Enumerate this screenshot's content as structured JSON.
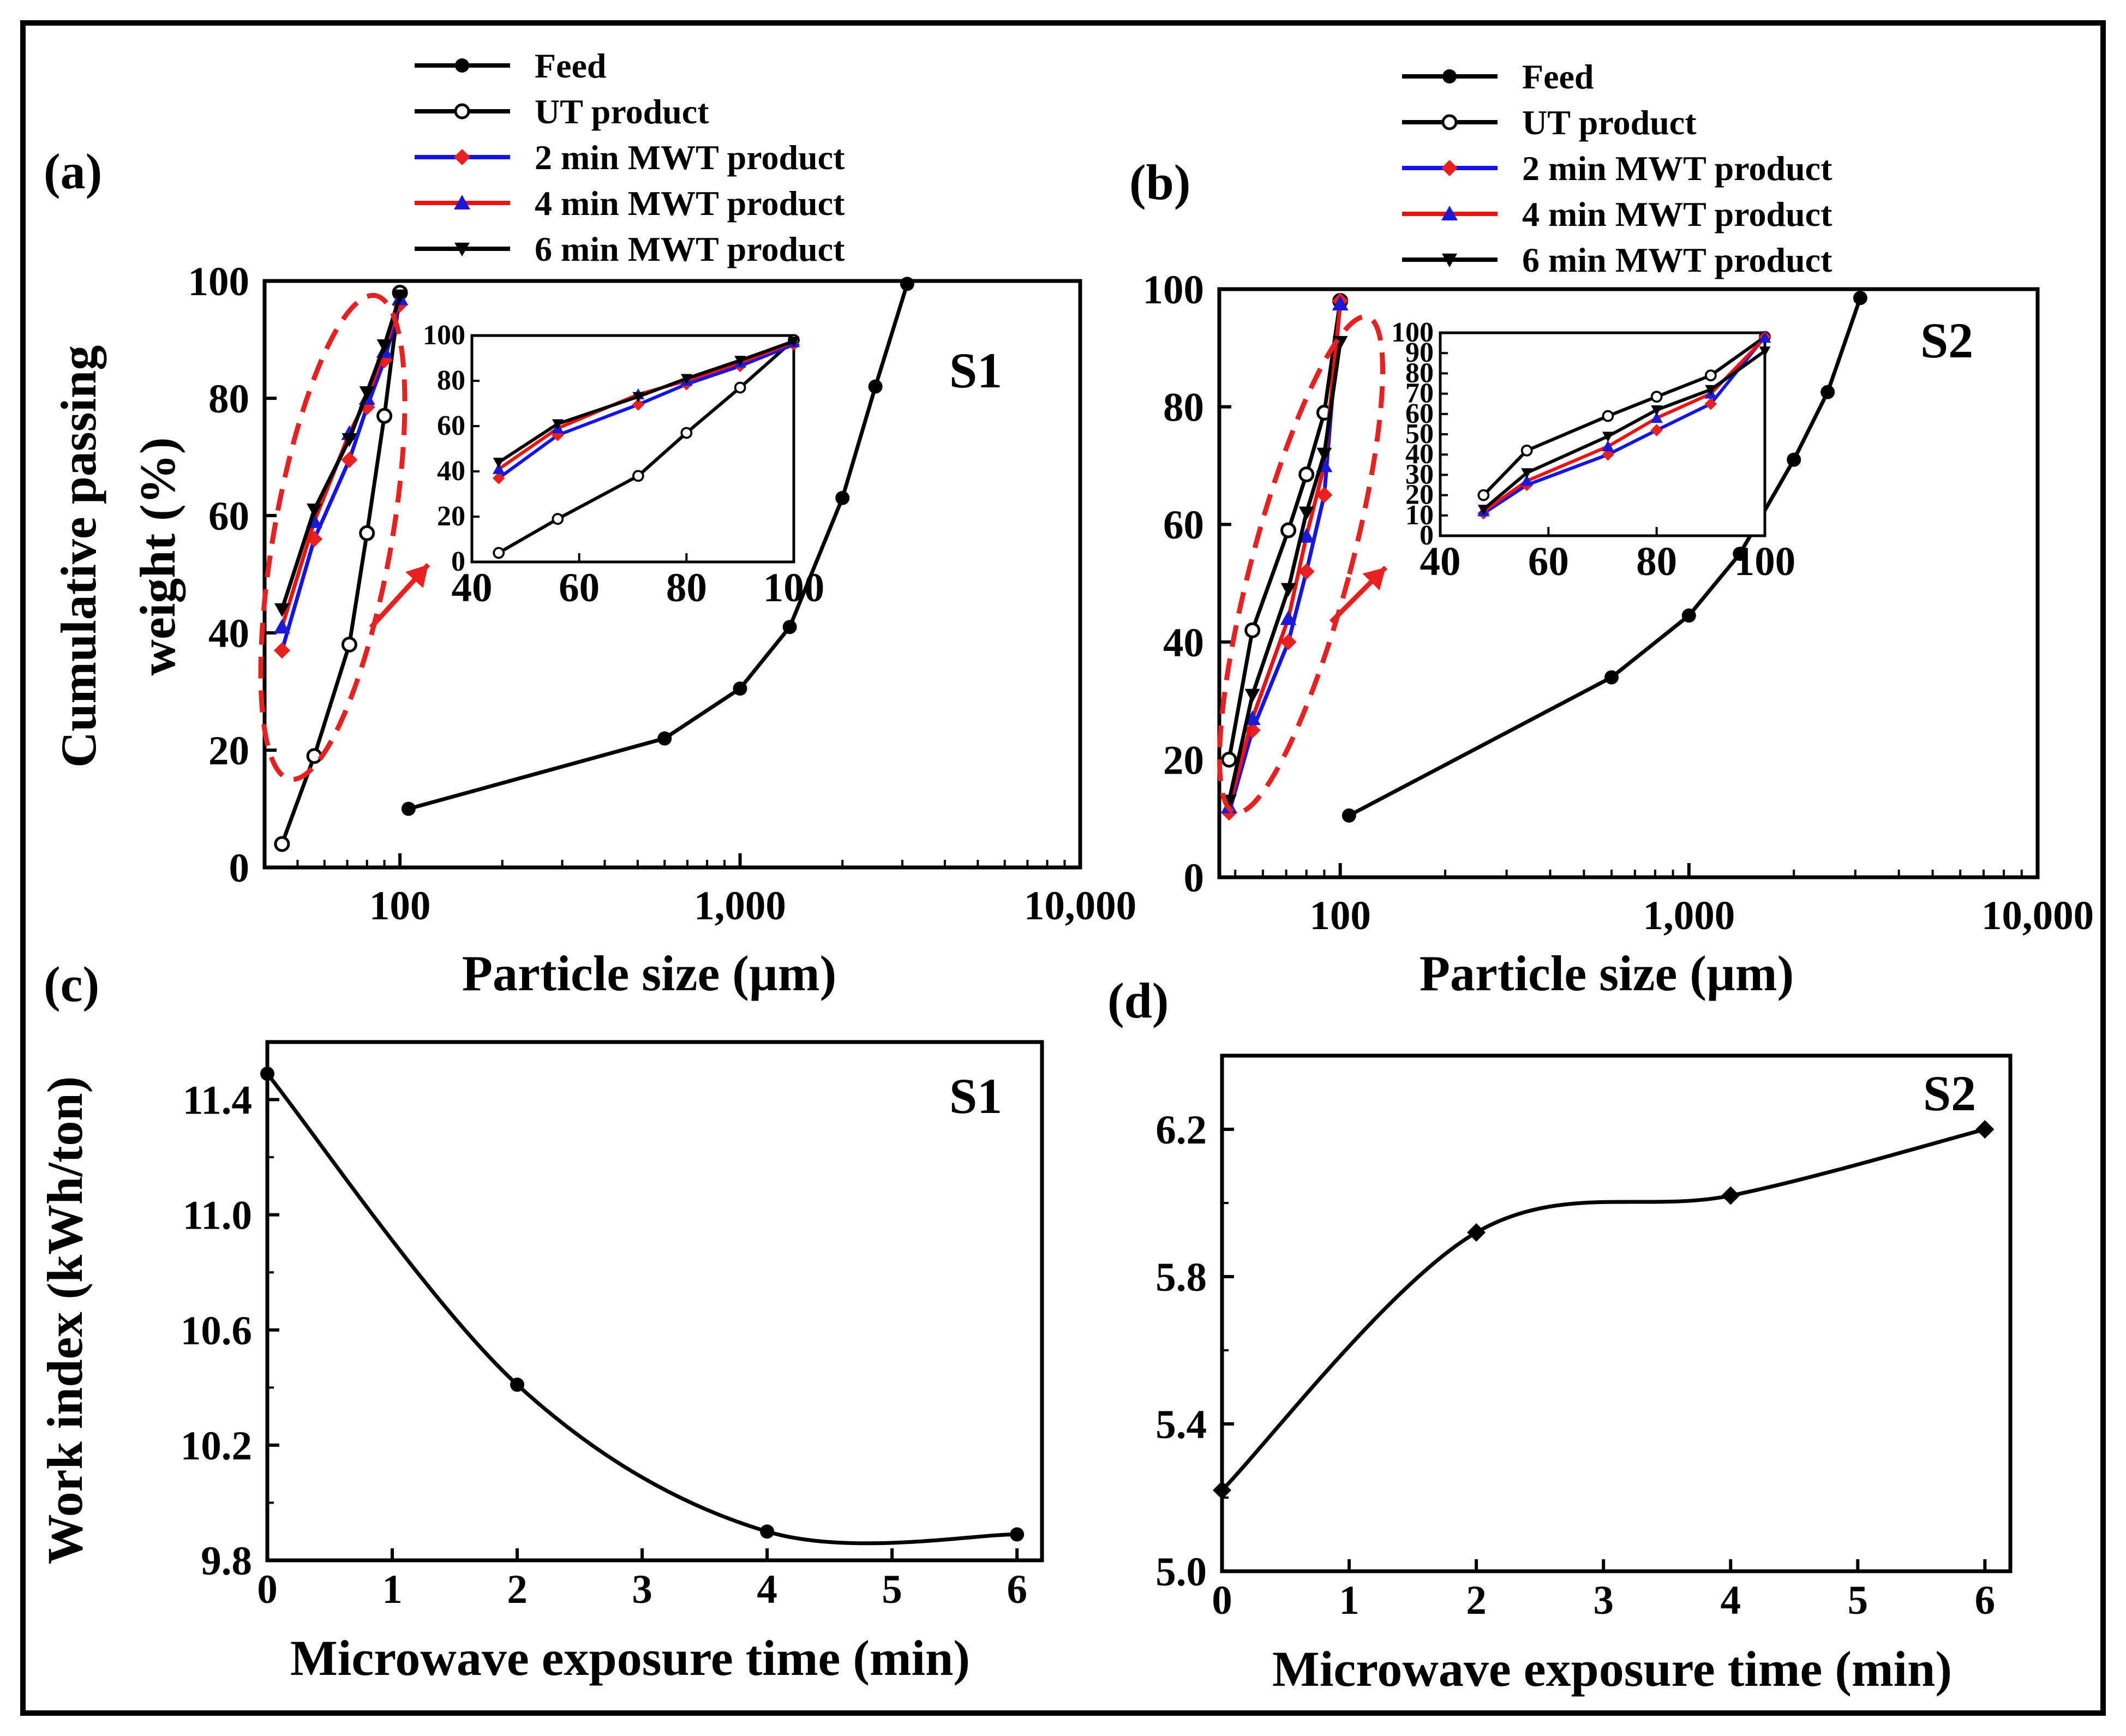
{
  "colors": {
    "black": "#000000",
    "blue": "#1414e8",
    "red": "#ee1111",
    "marker_red": "#e82020",
    "marker_blue": "#1a1ad8",
    "highlight": "#e82020"
  },
  "legend": {
    "items": [
      {
        "label": "Feed",
        "color": "#000000",
        "marker": "filled-circle"
      },
      {
        "label": "UT product",
        "color": "#000000",
        "marker": "open-circle"
      },
      {
        "label": "2 min MWT product",
        "color": "#1414e8",
        "marker": "red-diamond"
      },
      {
        "label": "4 min MWT product",
        "color": "#ee1111",
        "marker": "blue-triangle"
      },
      {
        "label": "6 min MWT product",
        "color": "#000000",
        "marker": "down-triangle"
      }
    ]
  },
  "chart_data": [
    {
      "panel": "(a)",
      "sample_label": "S1",
      "type": "line",
      "xscale": "log",
      "xlabel": "Particle size (µm)",
      "ylabel": "Cumulative passing weight (%)",
      "xlim": [
        40,
        10000
      ],
      "ylim": [
        0,
        100
      ],
      "x_ticks": [
        {
          "v": 100,
          "label": "100"
        },
        {
          "v": 1000,
          "label": "1,000"
        },
        {
          "v": 10000,
          "label": "10,000"
        }
      ],
      "y_ticks": [
        0,
        20,
        40,
        60,
        80,
        100
      ],
      "series": [
        {
          "name": "Feed",
          "x": [
            106,
            600,
            1000,
            1400,
            2000,
            2500,
            3100
          ],
          "y": [
            10,
            22,
            30.5,
            41,
            63,
            82,
            99.5
          ]
        },
        {
          "name": "UT product",
          "x": [
            45,
            56,
            71,
            80,
            90,
            100
          ],
          "y": [
            4,
            19,
            38,
            57,
            77,
            98
          ]
        },
        {
          "name": "2 min MWT product",
          "x": [
            45,
            56,
            71,
            80,
            90,
            100
          ],
          "y": [
            37,
            56,
            69.5,
            78.5,
            86.5,
            96
          ]
        },
        {
          "name": "4 min MWT product",
          "x": [
            45,
            56,
            71,
            80,
            90,
            100
          ],
          "y": [
            41,
            59,
            74,
            80,
            88,
            97
          ]
        },
        {
          "name": "6 min MWT product",
          "x": [
            45,
            56,
            71,
            80,
            90,
            100
          ],
          "y": [
            44,
            61,
            73,
            81,
            89,
            97.5
          ]
        }
      ],
      "inset": {
        "xlim": [
          40,
          100
        ],
        "ylim": [
          0,
          100
        ],
        "x_ticks": [
          40,
          60,
          80,
          100
        ],
        "y_ticks": [
          0,
          20,
          40,
          60,
          80,
          100
        ]
      }
    },
    {
      "panel": "(b)",
      "sample_label": "S2",
      "type": "line",
      "xscale": "log",
      "xlabel": "Particle size (µm)",
      "ylabel": "",
      "xlim": [
        45,
        10000
      ],
      "ylim": [
        0,
        100
      ],
      "x_ticks": [
        {
          "v": 100,
          "label": "100"
        },
        {
          "v": 1000,
          "label": "1,000"
        },
        {
          "v": 10000,
          "label": "10,000"
        }
      ],
      "y_ticks": [
        0,
        20,
        40,
        60,
        80,
        100
      ],
      "series": [
        {
          "name": "Feed",
          "x": [
            106,
            600,
            1000,
            1400,
            2000,
            2500,
            3100
          ],
          "y": [
            10.5,
            34,
            44.5,
            55,
            71,
            82.5,
            98.5
          ]
        },
        {
          "name": "UT product",
          "x": [
            48,
            56,
            71,
            80,
            90,
            100
          ],
          "y": [
            20,
            42,
            59,
            68.5,
            79,
            98
          ]
        },
        {
          "name": "2 min MWT product",
          "x": [
            48,
            56,
            71,
            80,
            90,
            100
          ],
          "y": [
            11,
            25,
            40,
            52,
            65,
            98
          ]
        },
        {
          "name": "4 min MWT product",
          "x": [
            48,
            56,
            71,
            80,
            90,
            100
          ],
          "y": [
            12,
            27,
            44,
            58,
            70,
            97.5
          ]
        },
        {
          "name": "6 min MWT product",
          "x": [
            48,
            56,
            71,
            80,
            90,
            100
          ],
          "y": [
            13,
            31,
            49,
            62,
            72,
            91
          ]
        }
      ],
      "inset": {
        "xlim": [
          40,
          100
        ],
        "ylim": [
          0,
          100
        ],
        "x_ticks": [
          40,
          60,
          80,
          100
        ],
        "y_ticks": [
          0,
          10,
          20,
          30,
          40,
          50,
          60,
          70,
          80,
          90,
          100
        ]
      }
    },
    {
      "panel": "(c)",
      "sample_label": "S1",
      "type": "line",
      "xlabel": "Microwave exposure time (min)",
      "ylabel": "Work index (kWh/ton)",
      "xlim": [
        0,
        6.2
      ],
      "ylim": [
        9.8,
        11.6
      ],
      "x_ticks": [
        0,
        1,
        2,
        3,
        4,
        5,
        6
      ],
      "y_ticks": [
        "9.8",
        "10.2",
        "10.6",
        "11.0",
        "11.4"
      ],
      "series": [
        {
          "name": "Work index",
          "marker": "filled-circle",
          "x": [
            0,
            2,
            4,
            6
          ],
          "y": [
            11.49,
            10.41,
            9.9,
            9.89
          ]
        }
      ]
    },
    {
      "panel": "(d)",
      "sample_label": "S2",
      "type": "line",
      "xlabel": "Microwave exposure time (min)",
      "ylabel": "",
      "xlim": [
        0,
        6.2
      ],
      "ylim": [
        5.0,
        6.4
      ],
      "x_ticks": [
        0,
        1,
        2,
        3,
        4,
        5,
        6
      ],
      "y_ticks": [
        "5.0",
        "5.4",
        "5.8",
        "6.2"
      ],
      "series": [
        {
          "name": "Work index",
          "marker": "filled-diamond",
          "x": [
            0,
            2,
            4,
            6
          ],
          "y": [
            5.22,
            5.92,
            6.02,
            6.2
          ]
        }
      ]
    }
  ]
}
